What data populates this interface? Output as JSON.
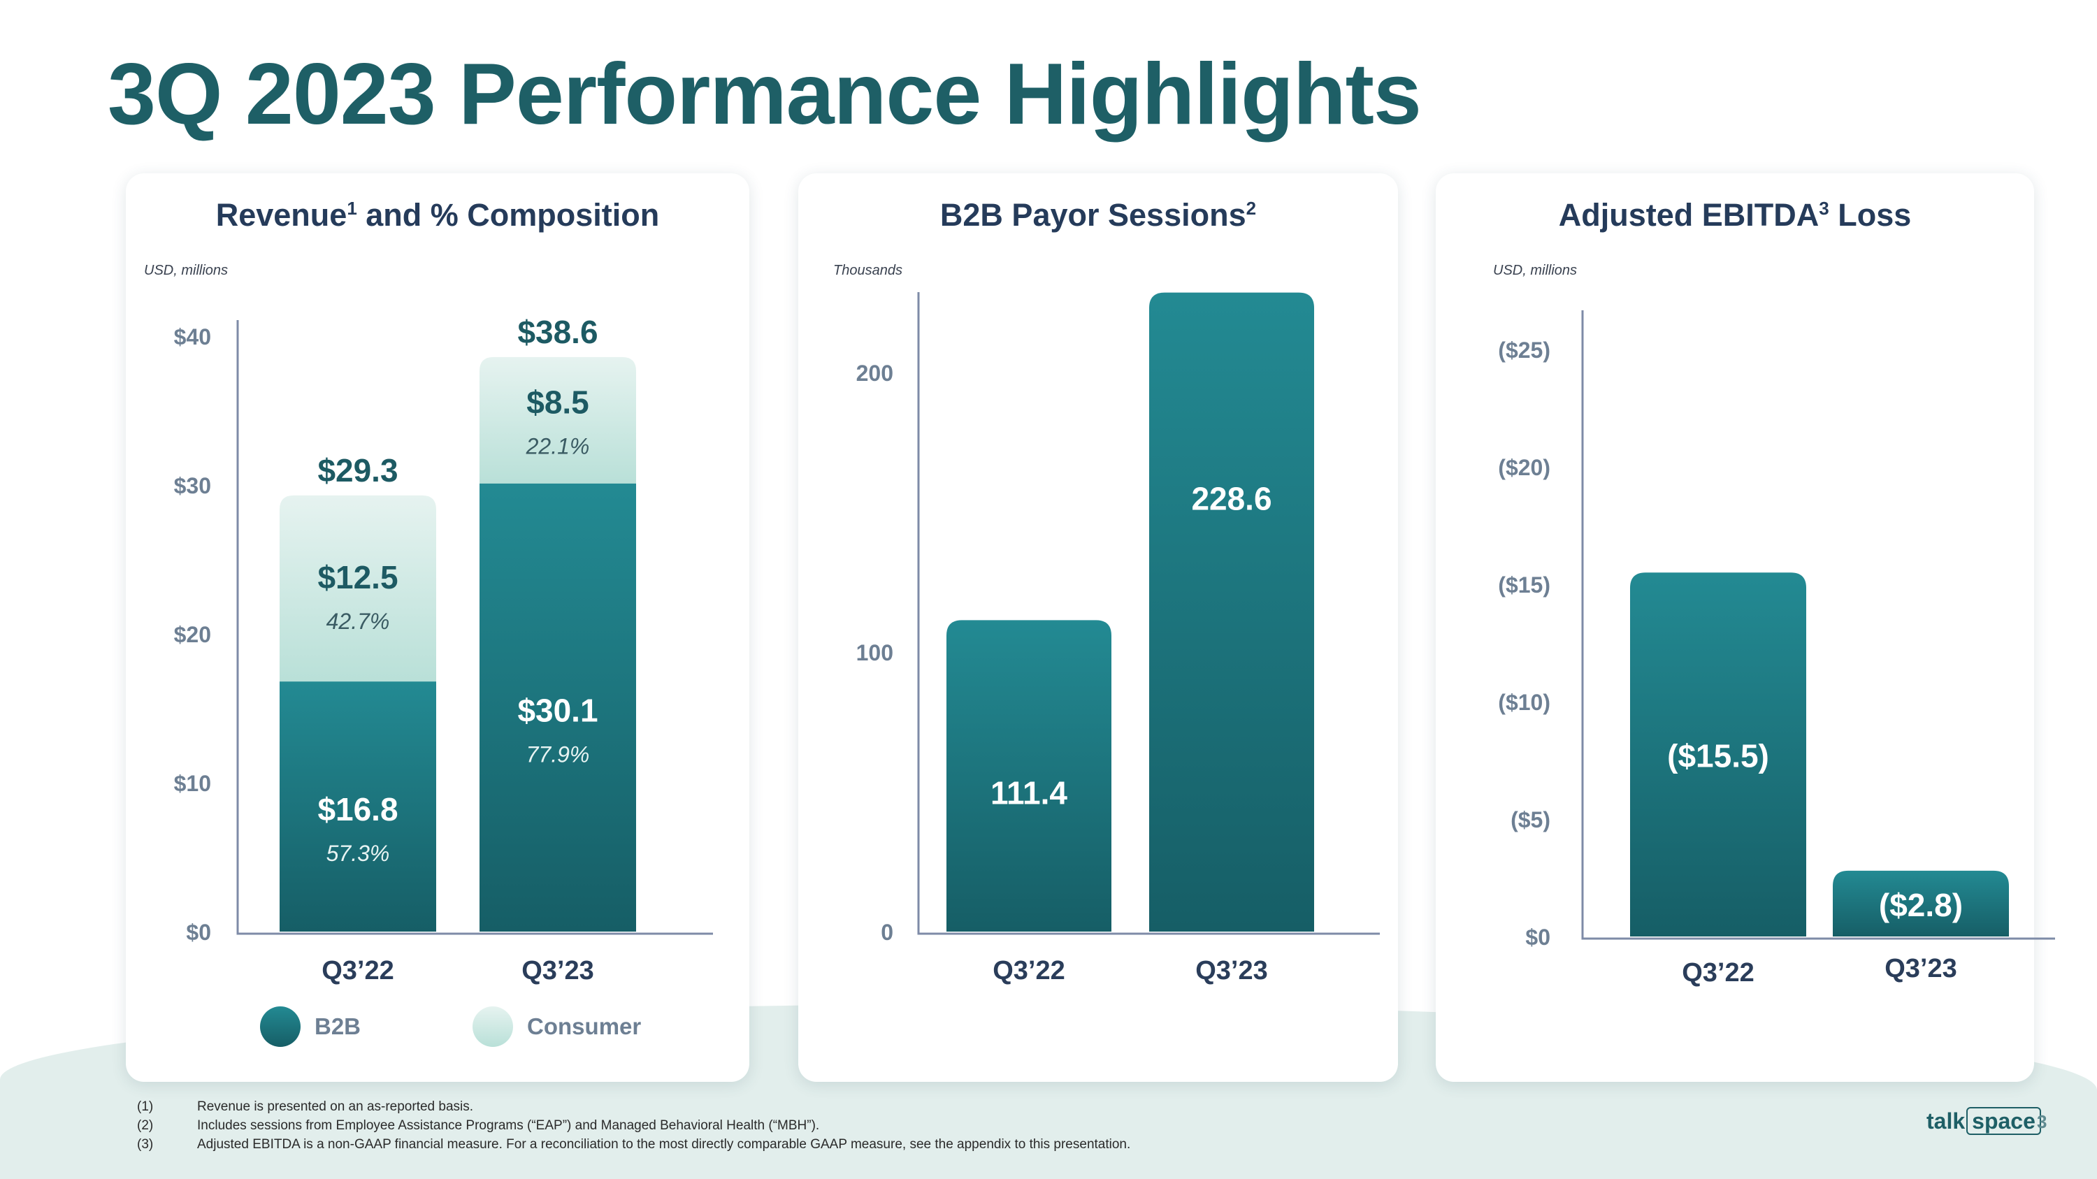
{
  "page": {
    "title": "3Q 2023 Performance Highlights",
    "page_number": "3",
    "brand": {
      "part1": "talk",
      "part2": "space"
    }
  },
  "colors": {
    "title": "#1e5f66",
    "bar_top": "#238a93",
    "bar_bottom": "#165e66",
    "consumer_top": "#e6f3f0",
    "consumer_bottom": "#b9e0d8",
    "card_title": "#253b5a",
    "axis_text": "#6d7f93"
  },
  "cards": [
    {
      "title": "Revenue",
      "sup": "1",
      "title_suffix": " and % Composition",
      "unit": "USD, millions"
    },
    {
      "title": "B2B Payor Sessions",
      "sup": "2",
      "title_suffix": "",
      "unit": "Thousands"
    },
    {
      "title": "Adjusted EBITDA",
      "sup": "3",
      "title_suffix": " Loss",
      "unit": "USD, millions"
    }
  ],
  "chart_data": [
    {
      "type": "bar",
      "stacked": true,
      "title": "Revenue1 and % Composition",
      "ylabel": "USD, millions",
      "categories": [
        "Q3’22",
        "Q3’23"
      ],
      "ylim": [
        0,
        40
      ],
      "y_ticks": [
        "$0",
        "$10",
        "$20",
        "$30",
        "$40"
      ],
      "series": [
        {
          "name": "B2B",
          "values": [
            16.8,
            30.1
          ],
          "labels": [
            "$16.8",
            "$30.1"
          ],
          "pct_labels": [
            "57.3%",
            "77.9%"
          ]
        },
        {
          "name": "Consumer",
          "values": [
            12.5,
            8.5
          ],
          "labels": [
            "$12.5",
            "$8.5"
          ],
          "pct_labels": [
            "42.7%",
            "22.1%"
          ]
        }
      ],
      "totals": [
        29.3,
        38.6
      ],
      "total_labels": [
        "$29.3",
        "$38.6"
      ],
      "legend": [
        "B2B",
        "Consumer"
      ],
      "legend_position": "bottom"
    },
    {
      "type": "bar",
      "title": "B2B Payor Sessions2",
      "ylabel": "Thousands",
      "categories": [
        "Q3’22",
        "Q3’23"
      ],
      "ylim": [
        0,
        230
      ],
      "y_ticks": [
        "0",
        "100",
        "200"
      ],
      "values": [
        111.4,
        228.6
      ],
      "labels": [
        "111.4",
        "228.6"
      ]
    },
    {
      "type": "bar",
      "title": "Adjusted EBITDA3 Loss",
      "ylabel": "USD, millions",
      "categories": [
        "Q3’22",
        "Q3’23"
      ],
      "ylim": [
        0,
        -27
      ],
      "y_ticks": [
        "$0",
        "($5)",
        "($10)",
        "($15)",
        "($20)",
        "($25)"
      ],
      "values": [
        -15.5,
        -2.8
      ],
      "labels": [
        "($15.5)",
        "($2.8)"
      ]
    }
  ],
  "footnotes": [
    {
      "num": "(1)",
      "text": "Revenue is presented on an as-reported basis."
    },
    {
      "num": "(2)",
      "text": "Includes sessions from Employee Assistance Programs (“EAP”) and Managed Behavioral Health (“MBH”)."
    },
    {
      "num": "(3)",
      "text": "Adjusted EBITDA is a non-GAAP financial measure. For a reconciliation to the most directly comparable GAAP measure, see the appendix to this presentation."
    }
  ]
}
